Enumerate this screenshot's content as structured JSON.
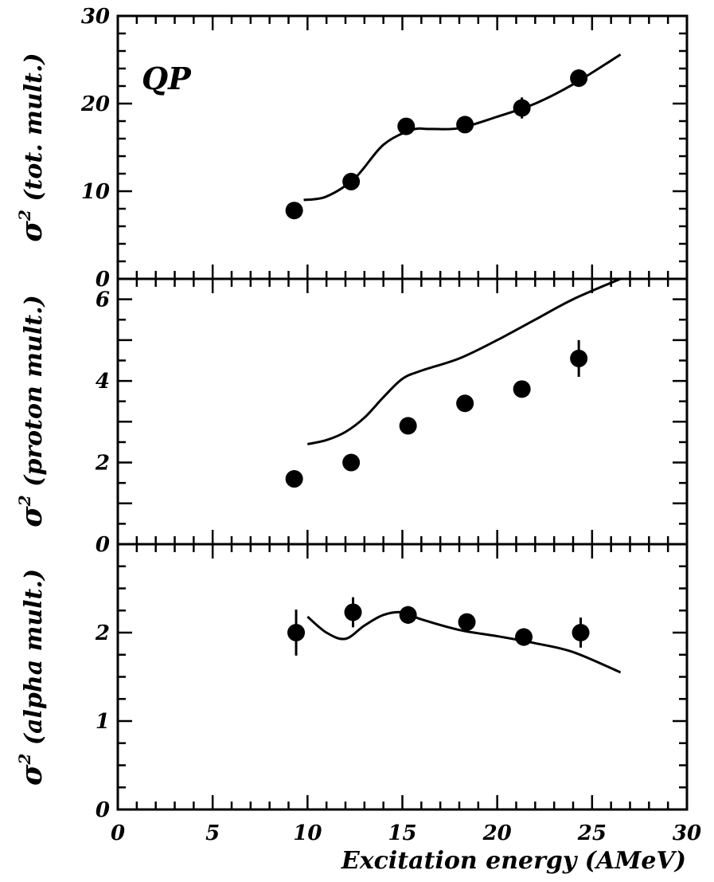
{
  "chart_data": [
    {
      "type": "scatter",
      "panel_label": "QP",
      "ylabel_main": "σ",
      "ylabel_sup": "2",
      "ylabel_rest": " (tot. mult.)",
      "xlim": [
        0,
        30
      ],
      "ylim": [
        0,
        30
      ],
      "y_tick_labels": [
        "0",
        "10",
        "20",
        "30"
      ],
      "points": [
        {
          "x": 9.3,
          "y": 7.8,
          "err": 0.0
        },
        {
          "x": 12.3,
          "y": 11.1,
          "err": 0.0
        },
        {
          "x": 15.2,
          "y": 17.4,
          "err": 0.0
        },
        {
          "x": 18.3,
          "y": 17.6,
          "err": 0.0
        },
        {
          "x": 21.3,
          "y": 19.5,
          "err": 1.2
        },
        {
          "x": 24.3,
          "y": 22.9,
          "err": 1.0
        }
      ],
      "curve": [
        [
          9.8,
          9.0
        ],
        [
          11.0,
          9.4
        ],
        [
          12.5,
          11.5
        ],
        [
          14.0,
          15.3
        ],
        [
          15.5,
          17.0
        ],
        [
          16.5,
          17.1
        ],
        [
          18.0,
          17.2
        ],
        [
          20.0,
          18.5
        ],
        [
          22.0,
          20.0
        ],
        [
          24.0,
          22.2
        ],
        [
          26.5,
          25.6
        ]
      ]
    },
    {
      "type": "scatter",
      "ylabel_main": "σ",
      "ylabel_sup": "2",
      "ylabel_rest": " (proton mult.)",
      "xlim": [
        0,
        30
      ],
      "ylim": [
        0,
        6.5
      ],
      "y_tick_labels": [
        "0",
        "2",
        "4",
        "6"
      ],
      "points": [
        {
          "x": 9.3,
          "y": 1.6,
          "err": 0.0
        },
        {
          "x": 12.3,
          "y": 2.0,
          "err": 0.0
        },
        {
          "x": 15.3,
          "y": 2.9,
          "err": 0.0
        },
        {
          "x": 18.3,
          "y": 3.45,
          "err": 0.0
        },
        {
          "x": 21.3,
          "y": 3.8,
          "err": 0.0
        },
        {
          "x": 24.3,
          "y": 4.55,
          "err": 0.45
        }
      ],
      "curve": [
        [
          10.0,
          2.45
        ],
        [
          11.0,
          2.55
        ],
        [
          12.0,
          2.75
        ],
        [
          13.0,
          3.1
        ],
        [
          14.0,
          3.6
        ],
        [
          15.0,
          4.05
        ],
        [
          16.0,
          4.25
        ],
        [
          18.0,
          4.55
        ],
        [
          20.0,
          5.0
        ],
        [
          22.0,
          5.5
        ],
        [
          24.0,
          6.0
        ],
        [
          26.5,
          6.5
        ]
      ]
    },
    {
      "type": "scatter",
      "ylabel_main": "σ",
      "ylabel_sup": "2",
      "ylabel_rest": " (alpha mult.)",
      "xlim": [
        0,
        30
      ],
      "ylim": [
        0,
        3
      ],
      "y_tick_labels": [
        "0",
        "1",
        "2"
      ],
      "x_tick_labels": [
        "0",
        "5",
        "10",
        "15",
        "20",
        "25",
        "30"
      ],
      "xlabel": "Excitation energy (AMeV)",
      "points": [
        {
          "x": 9.4,
          "y": 2.0,
          "err": 0.26
        },
        {
          "x": 12.4,
          "y": 2.23,
          "err": 0.17
        },
        {
          "x": 15.3,
          "y": 2.2,
          "err": 0.1
        },
        {
          "x": 18.4,
          "y": 2.12,
          "err": 0.0
        },
        {
          "x": 21.4,
          "y": 1.95,
          "err": 0.1
        },
        {
          "x": 24.4,
          "y": 2.0,
          "err": 0.17
        }
      ],
      "curve": [
        [
          10.0,
          2.18
        ],
        [
          11.0,
          2.0
        ],
        [
          12.0,
          1.93
        ],
        [
          13.0,
          2.08
        ],
        [
          14.0,
          2.2
        ],
        [
          15.0,
          2.23
        ],
        [
          16.0,
          2.15
        ],
        [
          18.0,
          2.03
        ],
        [
          20.0,
          1.96
        ],
        [
          22.0,
          1.88
        ],
        [
          24.0,
          1.78
        ],
        [
          26.5,
          1.55
        ]
      ]
    }
  ]
}
